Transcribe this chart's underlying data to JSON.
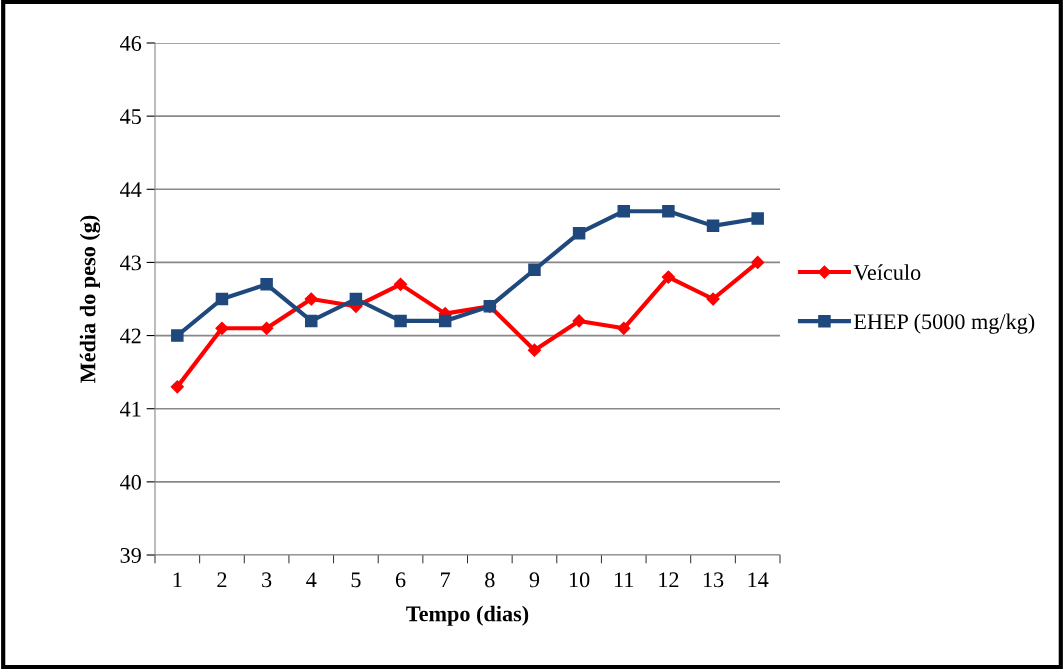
{
  "chart_data": {
    "type": "line",
    "xlabel": "Tempo (dias)",
    "ylabel": "Média do peso (g)",
    "categories": [
      "1",
      "2",
      "3",
      "4",
      "5",
      "6",
      "7",
      "8",
      "9",
      "10",
      "11",
      "12",
      "13",
      "14"
    ],
    "series": [
      {
        "name": "Veículo",
        "color": "#ff0000",
        "marker": "diamond",
        "values": [
          41.3,
          42.1,
          42.1,
          42.5,
          42.4,
          42.7,
          42.3,
          42.4,
          41.8,
          42.2,
          42.1,
          42.8,
          42.5,
          43.0
        ]
      },
      {
        "name": "EHEP (5000 mg/kg)",
        "color": "#1f497d",
        "marker": "square",
        "values": [
          42.0,
          42.5,
          42.7,
          42.2,
          42.5,
          42.2,
          42.2,
          42.4,
          42.9,
          43.4,
          43.7,
          43.7,
          43.5,
          43.6
        ]
      }
    ],
    "ylim": [
      39,
      46
    ],
    "yticks": [
      39,
      40,
      41,
      42,
      43,
      44,
      45,
      46
    ],
    "grid": "y",
    "legend": "right",
    "line_style": "solid"
  }
}
